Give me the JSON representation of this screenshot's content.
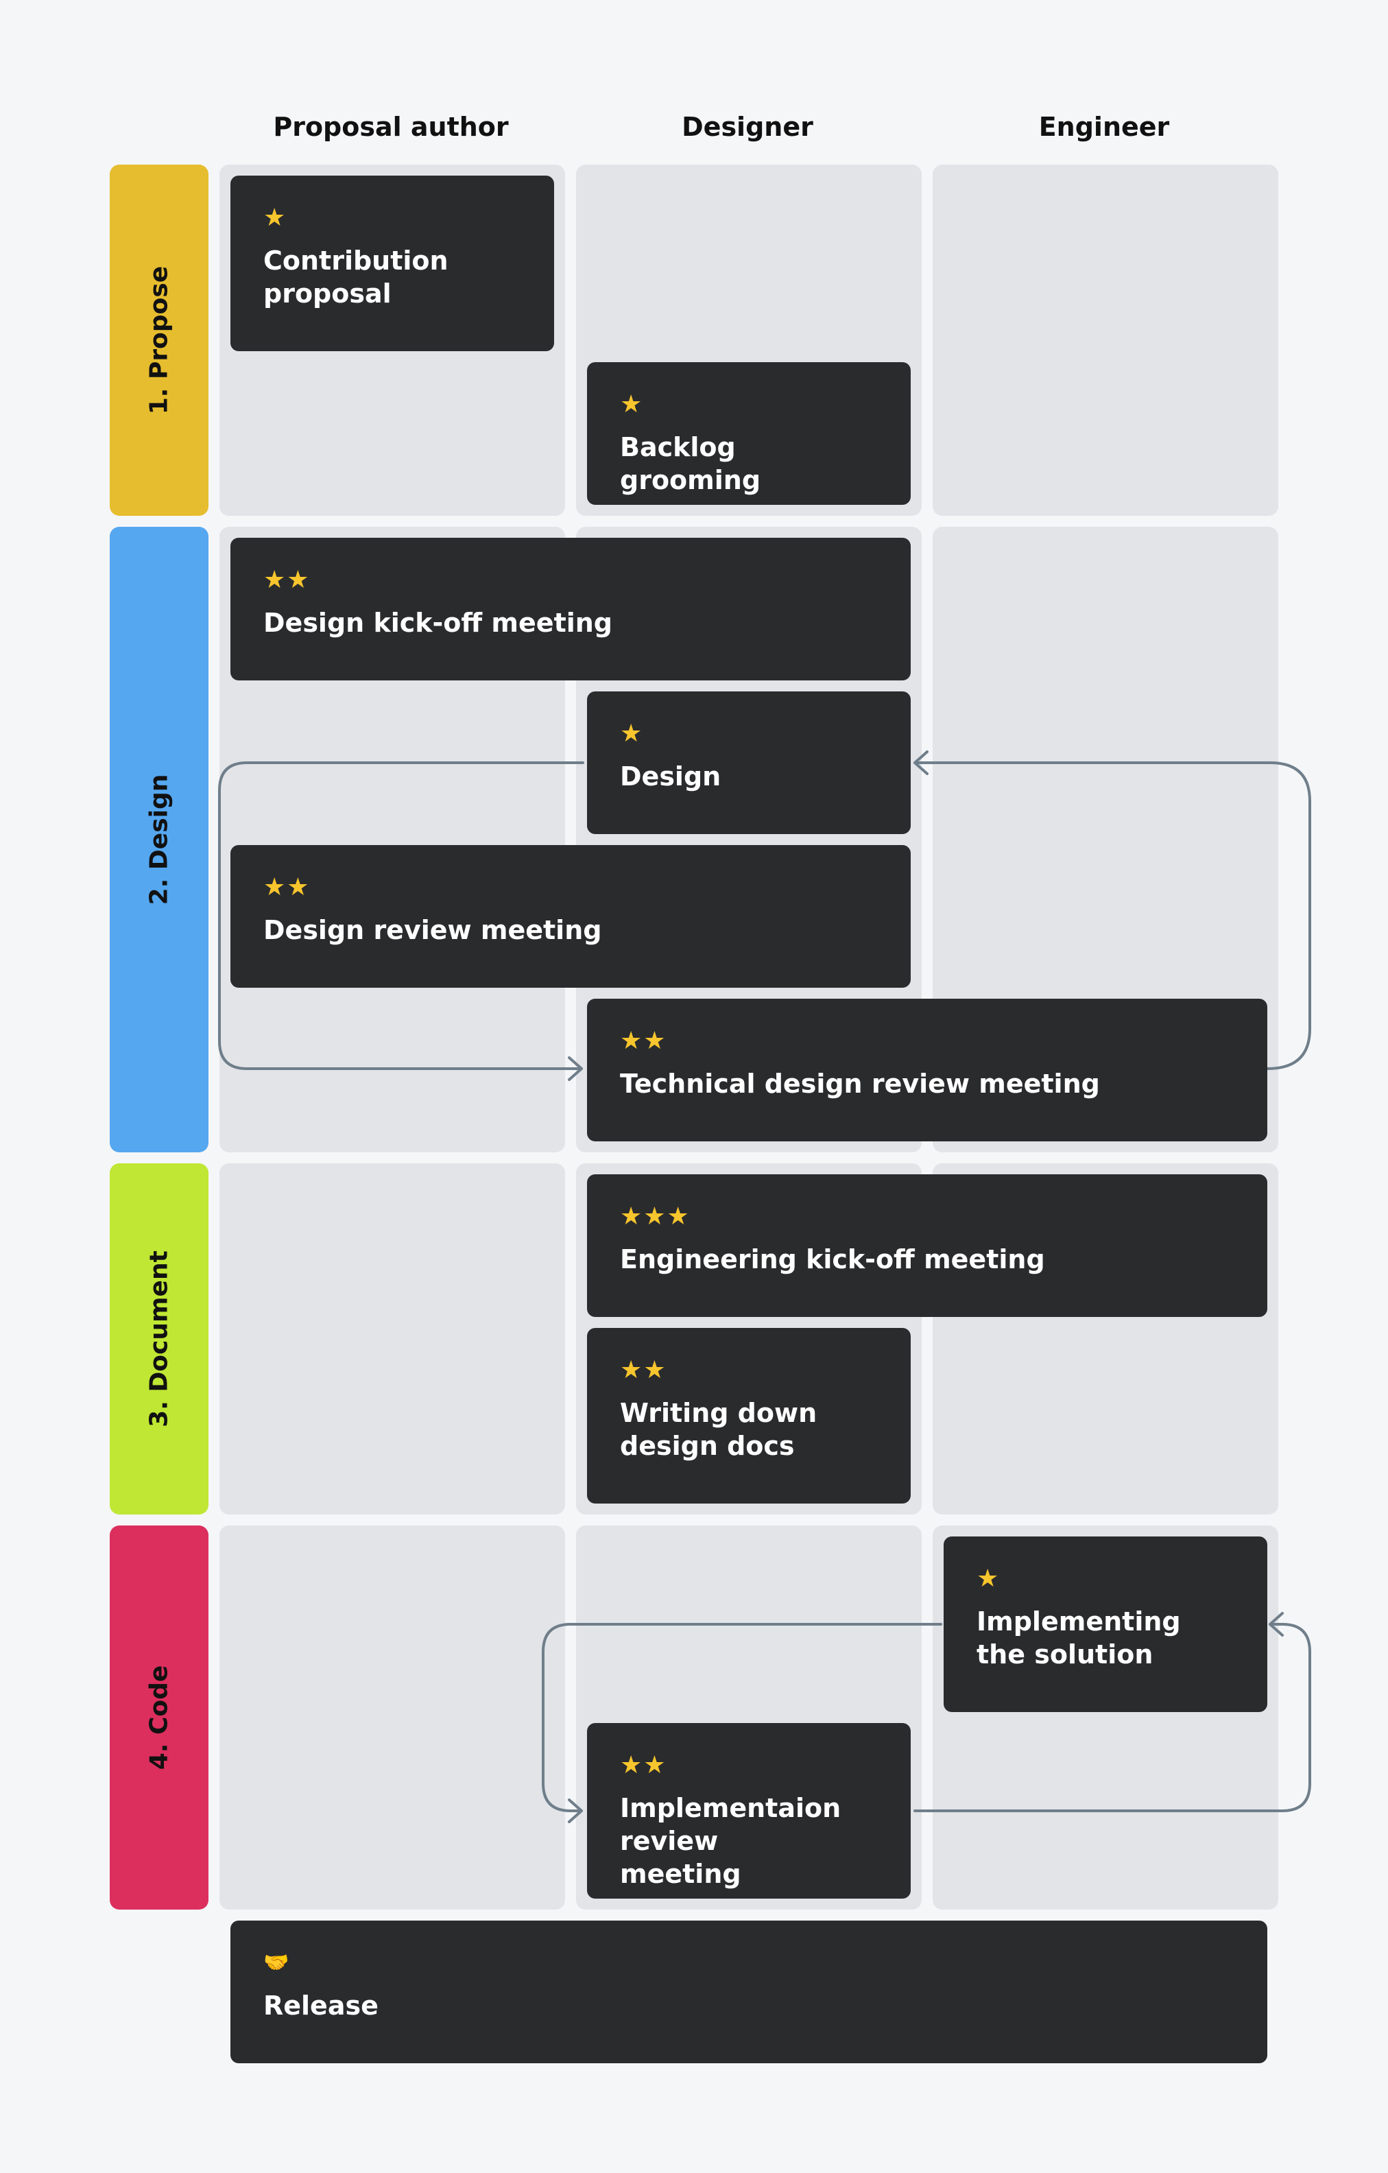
{
  "columns": {
    "proposal_author": "Proposal author",
    "designer": "Designer",
    "engineer": "Engineer"
  },
  "phases": {
    "propose": {
      "label": "1. Propose",
      "color": "#e6bd2f"
    },
    "design": {
      "label": "2. Design",
      "color": "#55a7f0"
    },
    "document": {
      "label": "3. Document",
      "color": "#bfe734"
    },
    "code": {
      "label": "4. Code",
      "color": "#dc2f5e"
    }
  },
  "cards": {
    "contribution_proposal": {
      "icon": "★",
      "icon_name": "star-icon",
      "label": "Contribution proposal"
    },
    "backlog_grooming": {
      "icon": "★",
      "icon_name": "star-icon",
      "label": "Backlog grooming"
    },
    "design_kickoff": {
      "icon": "★★",
      "icon_name": "star-icon",
      "label": "Design kick-off meeting"
    },
    "design": {
      "icon": "★",
      "icon_name": "star-icon",
      "label": "Design"
    },
    "design_review": {
      "icon": "★★",
      "icon_name": "star-icon",
      "label": "Design review meeting"
    },
    "technical_design_review": {
      "icon": "★★",
      "icon_name": "star-icon",
      "label": "Technical design review meeting"
    },
    "engineering_kickoff": {
      "icon": "★★★",
      "icon_name": "star-icon",
      "label": "Engineering kick-off meeting"
    },
    "writing_design_docs": {
      "icon": "★★",
      "icon_name": "star-icon",
      "label": "Writing down design docs"
    },
    "implementing_solution": {
      "icon": "★",
      "icon_name": "star-icon",
      "label": "Implementing the solution"
    },
    "implementation_review": {
      "icon": "★★",
      "icon_name": "star-icon",
      "label": "Implementaion review meeting"
    },
    "release": {
      "icon": "🤝",
      "icon_name": "handshake-icon",
      "label": "Release"
    }
  },
  "colors": {
    "background": "#f5f6f8",
    "cell": "#e2e4e7",
    "card": "#2a2b2d",
    "arrow": "#6f7e8a",
    "star": "#f7c52d"
  }
}
